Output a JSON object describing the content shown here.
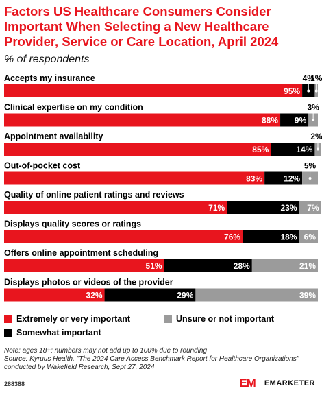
{
  "header": {
    "title": "Factors US Healthcare Consumers Consider Important When Selecting a New Healthcare Provider, Service or Care Location, April 2024",
    "subtitle": "% of respondents"
  },
  "chart_data": {
    "type": "bar",
    "orientation": "horizontal",
    "stacked": true,
    "categories": [
      "Accepts my insurance",
      "Clinical expertise on my condition",
      "Appointment availability",
      "Out-of-pocket cost",
      "Quality of online patient ratings and reviews",
      "Displays quality scores or ratings",
      "Offers online appointment scheduling",
      "Displays photos or videos of the provider"
    ],
    "series": [
      {
        "name": "Extremely or very important",
        "color": "#e8151e",
        "values": [
          95,
          88,
          85,
          83,
          71,
          76,
          51,
          32
        ]
      },
      {
        "name": "Somewhat important",
        "color": "#000000",
        "values": [
          4,
          9,
          14,
          12,
          23,
          18,
          28,
          29
        ]
      },
      {
        "name": "Unsure or not important",
        "color": "#9b9b9b",
        "values": [
          1,
          3,
          2,
          5,
          7,
          6,
          21,
          39
        ]
      }
    ],
    "value_suffix": "%",
    "xlim": [
      0,
      100
    ],
    "legend": "bottom"
  },
  "legend": {
    "items": [
      {
        "label": "Extremely or very important",
        "color": "#e8151e"
      },
      {
        "label": "Unsure or not important",
        "color": "#9b9b9b"
      },
      {
        "label": "Somewhat important",
        "color": "#000000"
      }
    ]
  },
  "footer": {
    "note": "Note: ages 18+; numbers may not add up to 100% due to rounding",
    "source": "Source: Kyruus Health, \"The 2024 Care Access Benchmark Report for Healthcare Organizations\" conducted by Wakefield Research, Sept 27, 2024",
    "chart_id": "288388",
    "brand_logo": "EM",
    "brand_name": "EMARKETER"
  }
}
